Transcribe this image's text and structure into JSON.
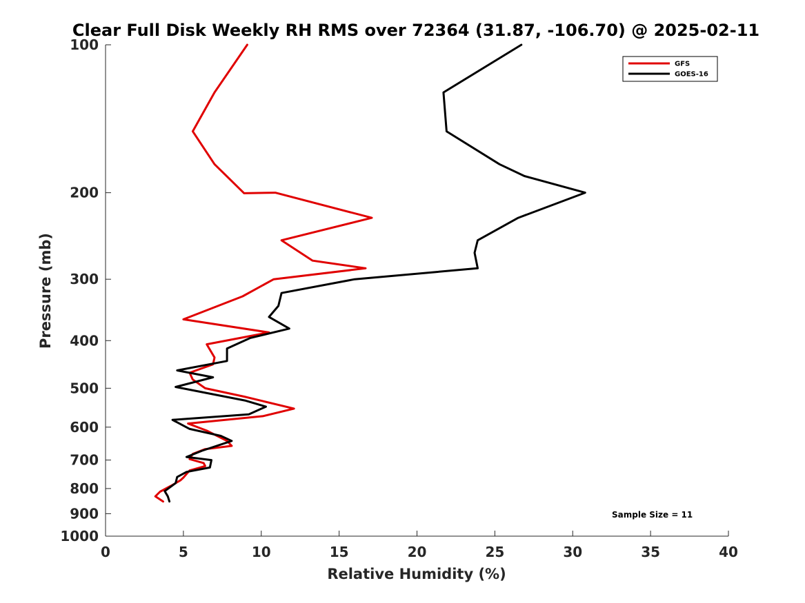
{
  "chart_data": {
    "type": "line",
    "title": "Clear Full Disk Weekly RH RMS over 72364 (31.87, -106.70) @ 2025-02-11",
    "xlabel": "Relative Humidity (%)",
    "ylabel": "Pressure (mb)",
    "xlim": [
      0,
      40
    ],
    "ylim": [
      100,
      1000
    ],
    "yscale": "log",
    "y_reversed": true,
    "x_ticks": [
      0,
      5,
      10,
      15,
      20,
      25,
      30,
      35,
      40
    ],
    "y_ticks": [
      100,
      200,
      300,
      400,
      500,
      600,
      700,
      800,
      900,
      1000
    ],
    "grid": false,
    "legend_position": "top-right",
    "annotation": "Sample Size = 11",
    "series": [
      {
        "name": "GFS",
        "color": "#e00000",
        "points": [
          [
            9.1,
            100
          ],
          [
            7.0,
            125
          ],
          [
            5.6,
            150
          ],
          [
            7.0,
            175
          ],
          [
            8.9,
            200.5
          ],
          [
            10.9,
            200
          ],
          [
            17.1,
            225
          ],
          [
            11.3,
            250
          ],
          [
            13.3,
            275
          ],
          [
            16.7,
            285
          ],
          [
            10.8,
            300
          ],
          [
            8.8,
            325
          ],
          [
            5.0,
            362
          ],
          [
            10.5,
            385
          ],
          [
            6.5,
            407
          ],
          [
            7.0,
            433
          ],
          [
            6.9,
            447
          ],
          [
            5.4,
            465
          ],
          [
            5.6,
            480
          ],
          [
            6.4,
            500
          ],
          [
            8.9,
            520
          ],
          [
            12.1,
            550
          ],
          [
            10.1,
            570
          ],
          [
            5.3,
            590
          ],
          [
            6.5,
            610
          ],
          [
            7.8,
            640
          ],
          [
            8.1,
            655
          ],
          [
            6.4,
            665
          ],
          [
            5.6,
            680
          ],
          [
            5.4,
            697
          ],
          [
            6.3,
            710
          ],
          [
            6.4,
            720
          ],
          [
            5.4,
            735
          ],
          [
            5.0,
            760
          ],
          [
            4.8,
            770
          ],
          [
            4.2,
            790
          ],
          [
            3.5,
            812
          ],
          [
            3.2,
            830
          ],
          [
            3.7,
            850
          ]
        ]
      },
      {
        "name": "GOES-16",
        "color": "#000000",
        "points": [
          [
            26.7,
            100
          ],
          [
            21.7,
            125
          ],
          [
            21.9,
            150
          ],
          [
            25.3,
            175
          ],
          [
            26.9,
            185
          ],
          [
            30.8,
            200
          ],
          [
            26.5,
            225
          ],
          [
            23.9,
            250
          ],
          [
            23.7,
            265
          ],
          [
            23.9,
            285
          ],
          [
            16.0,
            300
          ],
          [
            11.3,
            320
          ],
          [
            11.1,
            340
          ],
          [
            10.5,
            358
          ],
          [
            11.8,
            378
          ],
          [
            9.3,
            395
          ],
          [
            7.8,
            415
          ],
          [
            7.8,
            440
          ],
          [
            4.6,
            460
          ],
          [
            6.9,
            475
          ],
          [
            4.5,
            497
          ],
          [
            9.0,
            530
          ],
          [
            10.3,
            545
          ],
          [
            9.2,
            565
          ],
          [
            4.3,
            580
          ],
          [
            5.4,
            605
          ],
          [
            7.4,
            625
          ],
          [
            8.1,
            640
          ],
          [
            6.2,
            670
          ],
          [
            5.2,
            690
          ],
          [
            6.8,
            700
          ],
          [
            6.7,
            725
          ],
          [
            5.2,
            740
          ],
          [
            4.6,
            758
          ],
          [
            4.5,
            780
          ],
          [
            3.8,
            810
          ],
          [
            4.0,
            830
          ],
          [
            4.1,
            850
          ]
        ]
      }
    ]
  }
}
